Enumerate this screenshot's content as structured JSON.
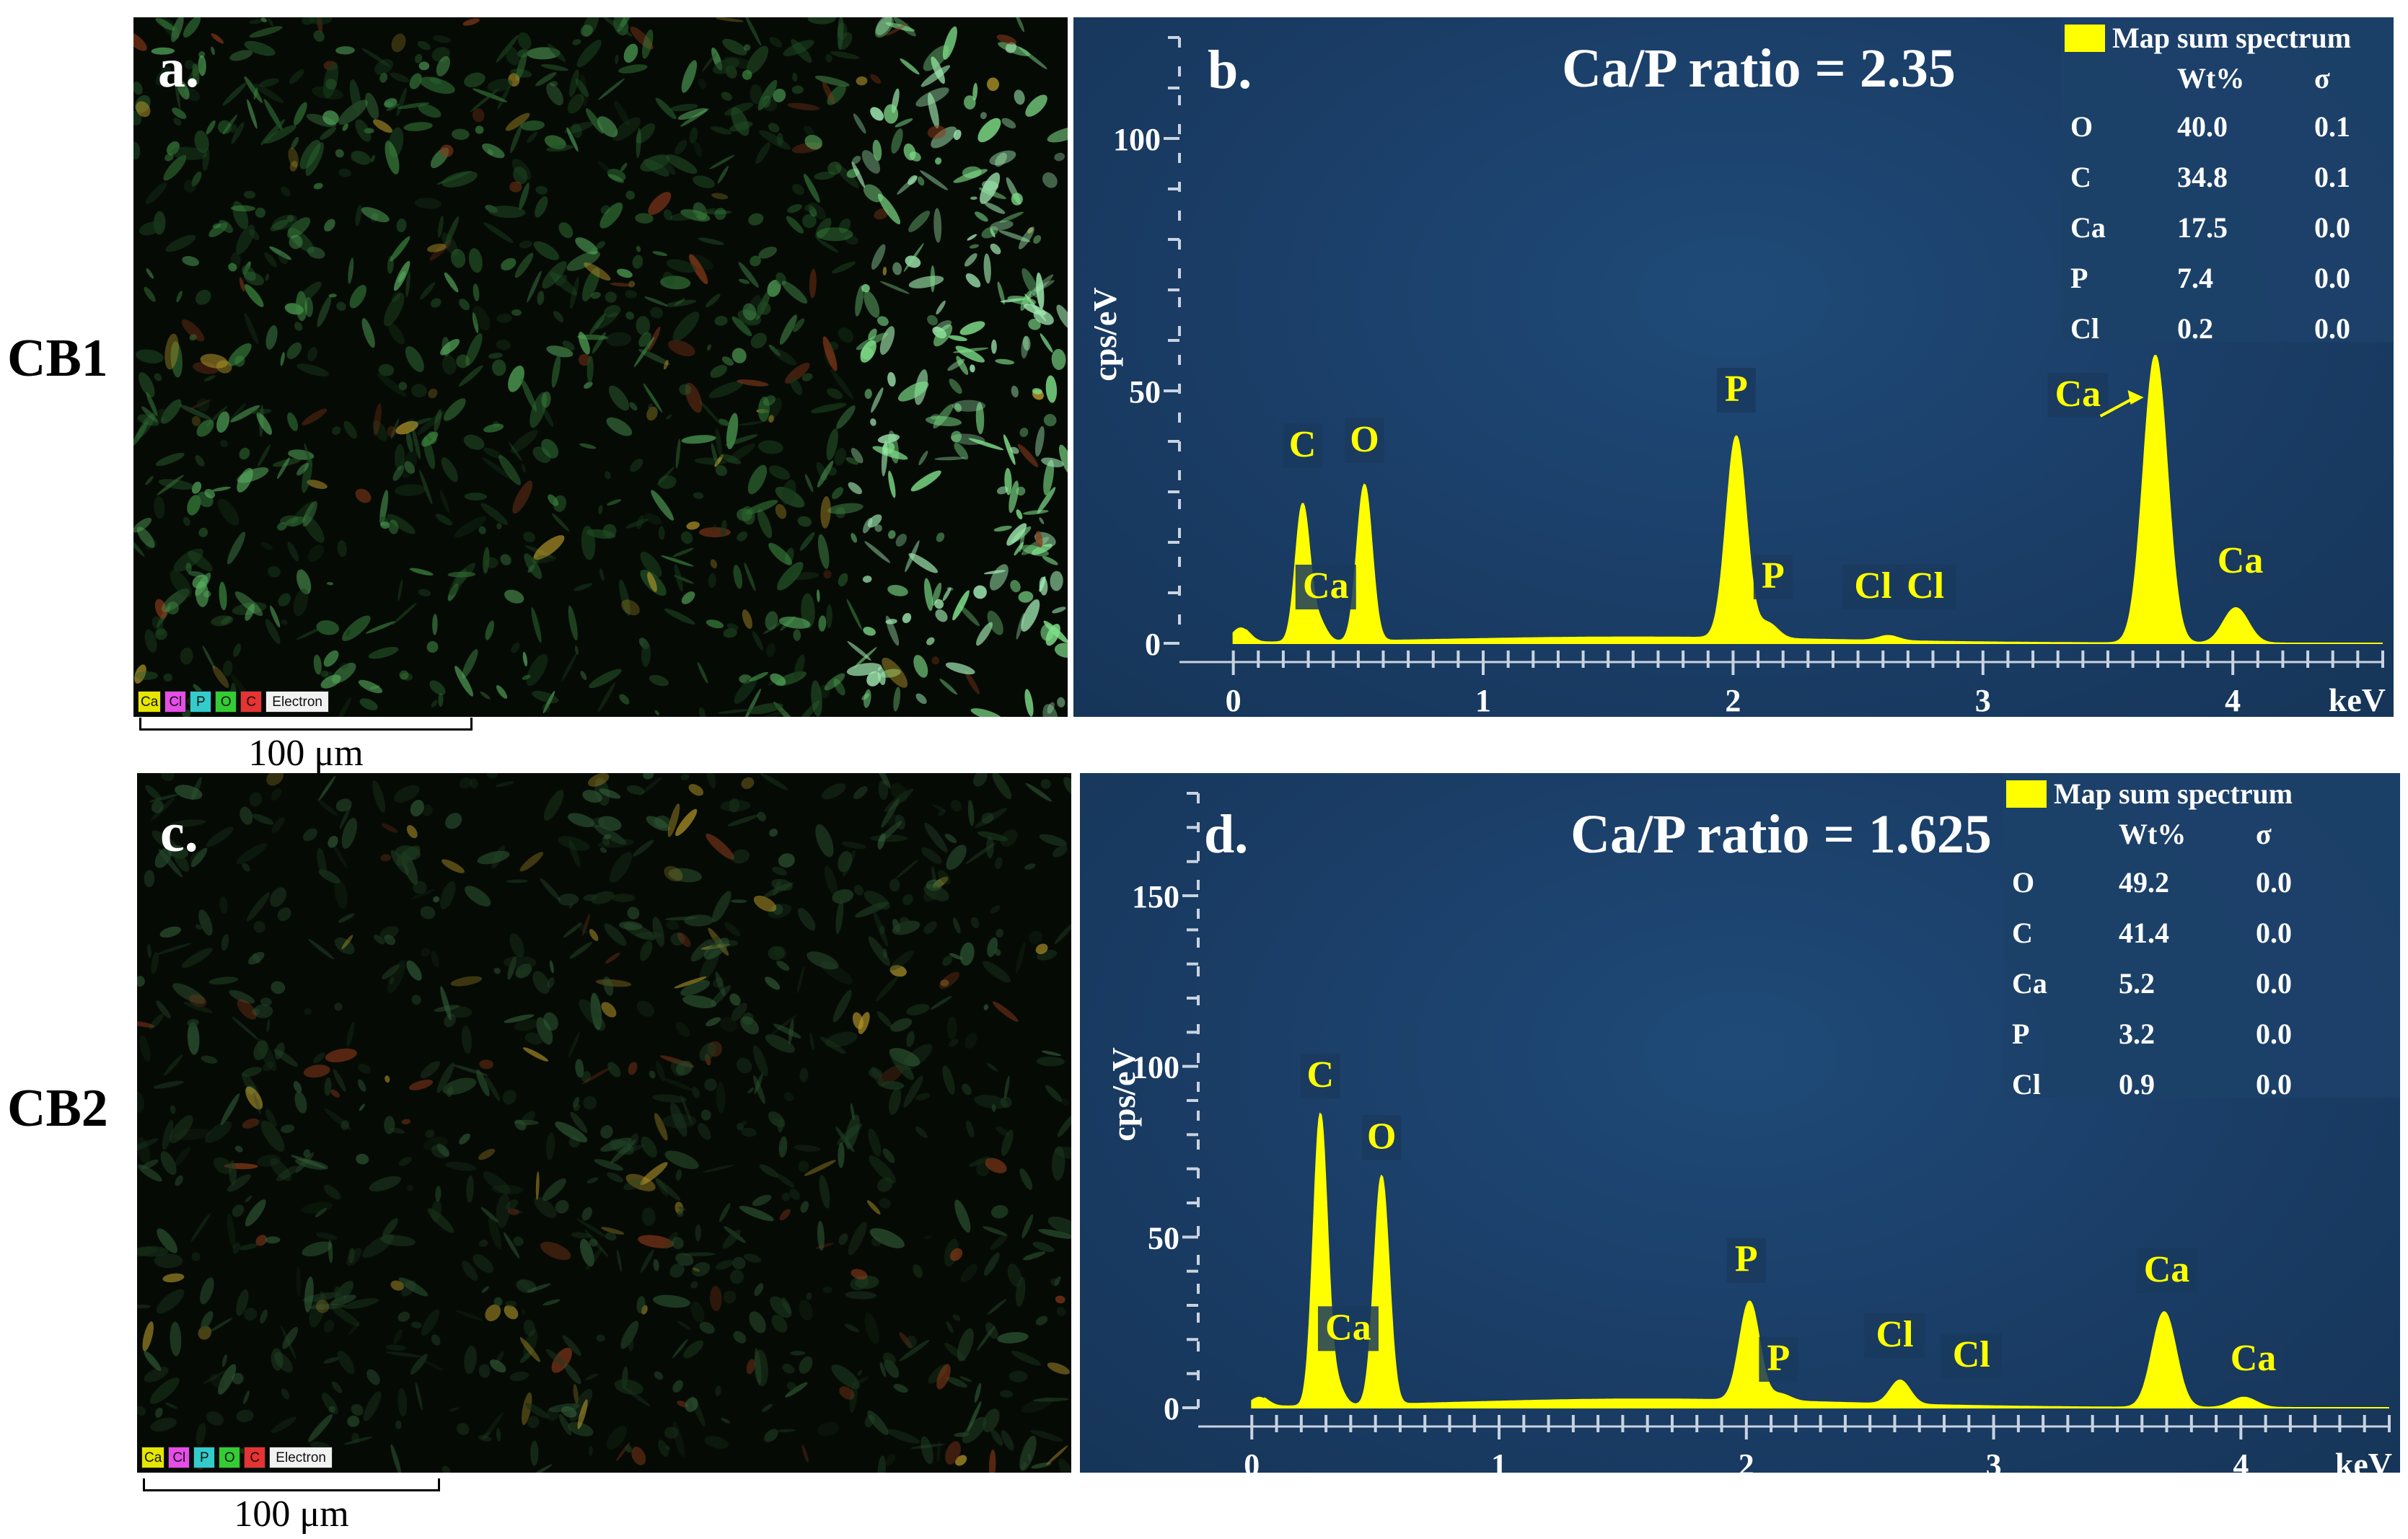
{
  "row_labels": [
    "CB1",
    "CB2"
  ],
  "maps": [
    {
      "letter": "a.",
      "legend": [
        "Ca",
        "Cl",
        "P",
        "O",
        "C",
        "Electron"
      ],
      "scale": "100 μm"
    },
    {
      "letter": "c.",
      "legend": [
        "Ca",
        "Cl",
        "P",
        "O",
        "C",
        "Electron"
      ],
      "scale": "100 μm"
    }
  ],
  "legend_colors": {
    "Ca": "#e6e600",
    "Cl": "#e64de6",
    "P": "#33cccc",
    "O": "#33cc33",
    "C": "#e63333"
  },
  "colors": {
    "spectrum": "#ffff00",
    "panel": "#1a3d66",
    "label": "#ffff00"
  },
  "chart_data": [
    {
      "type": "area",
      "panel": "b.",
      "title": "Ca/P ratio = 2.35",
      "xlabel": "keV",
      "ylabel": "cps/eV",
      "xlim": [
        -0.1,
        4.6
      ],
      "ylim": [
        0,
        120
      ],
      "xticks": [
        "0",
        "1",
        "2",
        "3",
        "4"
      ],
      "yticks": [
        "0",
        "50",
        "100"
      ],
      "series": [
        {
          "name": "Map sum spectrum"
        }
      ],
      "table_header": [
        "Wt%",
        "σ"
      ],
      "table": [
        {
          "el": "O",
          "wt": "40.0",
          "sigma": "0.1"
        },
        {
          "el": "C",
          "wt": "34.8",
          "sigma": "0.1"
        },
        {
          "el": "Ca",
          "wt": "17.5",
          "sigma": "0.0"
        },
        {
          "el": "P",
          "wt": "7.4",
          "sigma": "0.0"
        },
        {
          "el": "Cl",
          "wt": "0.2",
          "sigma": "0.0"
        }
      ],
      "baseline": 1.2,
      "peaks": [
        {
          "x": 0.03,
          "h": 3,
          "w": 0.035
        },
        {
          "x": 0.277,
          "h": 27,
          "w": 0.028
        },
        {
          "x": 0.341,
          "h": 4,
          "w": 0.03
        },
        {
          "x": 0.525,
          "h": 31,
          "w": 0.03
        },
        {
          "x": 2.013,
          "h": 40,
          "w": 0.04
        },
        {
          "x": 2.139,
          "h": 3,
          "w": 0.04
        },
        {
          "x": 2.622,
          "h": 1,
          "w": 0.04
        },
        {
          "x": 3.69,
          "h": 57,
          "w": 0.048
        },
        {
          "x": 4.012,
          "h": 7,
          "w": 0.05
        }
      ],
      "peak_labels": [
        {
          "text": "C",
          "x": 0.277,
          "y": 37
        },
        {
          "text": "Ca",
          "x": 0.37,
          "y": 9
        },
        {
          "text": "O",
          "x": 0.525,
          "y": 38
        },
        {
          "text": "P",
          "x": 2.013,
          "y": 48
        },
        {
          "text": "P",
          "x": 2.16,
          "y": 11
        },
        {
          "text": "Cl",
          "x": 2.56,
          "y": 9
        },
        {
          "text": "Cl",
          "x": 2.77,
          "y": 9
        },
        {
          "text": "Ca",
          "x": 3.38,
          "y": 47
        },
        {
          "text": "Ca",
          "x": 4.03,
          "y": 14
        }
      ]
    },
    {
      "type": "area",
      "panel": "d.",
      "title": "Ca/P ratio = 1.625",
      "xlabel": "keV",
      "ylabel": "cps/eV",
      "xlim": [
        -0.1,
        4.6
      ],
      "ylim": [
        0,
        180
      ],
      "xticks": [
        "0",
        "1",
        "2",
        "3",
        "4"
      ],
      "yticks": [
        "0",
        "50",
        "100",
        "150"
      ],
      "series": [
        {
          "name": "Map sum spectrum"
        }
      ],
      "table_header": [
        "Wt%",
        "σ"
      ],
      "table": [
        {
          "el": "O",
          "wt": "49.2",
          "sigma": "0.0"
        },
        {
          "el": "C",
          "wt": "41.4",
          "sigma": "0.0"
        },
        {
          "el": "Ca",
          "wt": "5.2",
          "sigma": "0.0"
        },
        {
          "el": "P",
          "wt": "3.2",
          "sigma": "0.0"
        },
        {
          "el": "Cl",
          "wt": "0.9",
          "sigma": "0.0"
        }
      ],
      "baseline": 2.5,
      "peaks": [
        {
          "x": 0.03,
          "h": 3,
          "w": 0.035
        },
        {
          "x": 0.277,
          "h": 85,
          "w": 0.028
        },
        {
          "x": 0.341,
          "h": 6,
          "w": 0.03
        },
        {
          "x": 0.525,
          "h": 67,
          "w": 0.03
        },
        {
          "x": 2.013,
          "h": 29,
          "w": 0.04
        },
        {
          "x": 2.139,
          "h": 2,
          "w": 0.04
        },
        {
          "x": 2.622,
          "h": 7,
          "w": 0.04
        },
        {
          "x": 3.69,
          "h": 28,
          "w": 0.048
        },
        {
          "x": 4.012,
          "h": 3,
          "w": 0.05
        }
      ],
      "peak_labels": [
        {
          "text": "C",
          "x": 0.277,
          "y": 94
        },
        {
          "text": "Ca",
          "x": 0.39,
          "y": 20
        },
        {
          "text": "O",
          "x": 0.525,
          "y": 76
        },
        {
          "text": "P",
          "x": 2.0,
          "y": 40
        },
        {
          "text": "P",
          "x": 2.13,
          "y": 11
        },
        {
          "text": "Cl",
          "x": 2.6,
          "y": 18
        },
        {
          "text": "Cl",
          "x": 2.91,
          "y": 12
        },
        {
          "text": "Ca",
          "x": 3.7,
          "y": 37
        },
        {
          "text": "Ca",
          "x": 4.05,
          "y": 11
        }
      ]
    }
  ]
}
